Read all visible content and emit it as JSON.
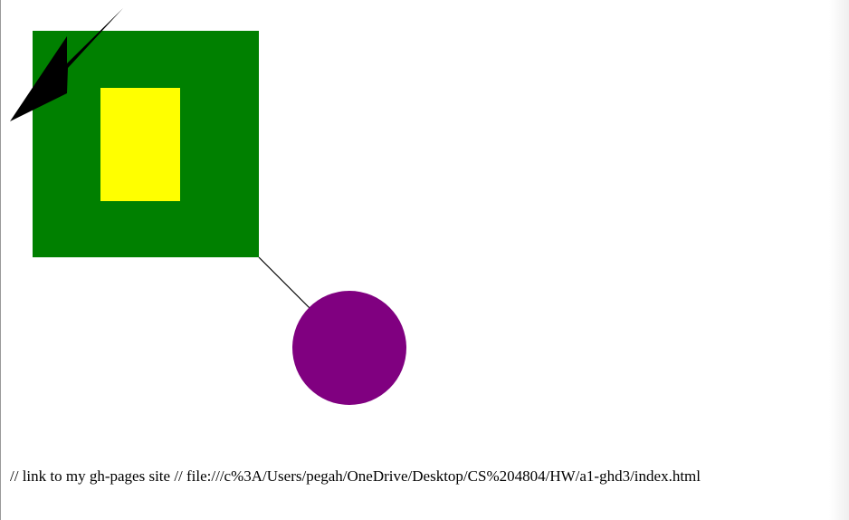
{
  "shapes": {
    "square_color": "#008000",
    "rectangle_color": "#ffff00",
    "lightning_color": "#000000",
    "circle_color": "#800080",
    "line_color": "#000000"
  },
  "footer": {
    "text": "// link to my gh-pages site // file:///c%3A/Users/pegah/OneDrive/Desktop/CS%204804/HW/a1-ghd3/index.html"
  }
}
